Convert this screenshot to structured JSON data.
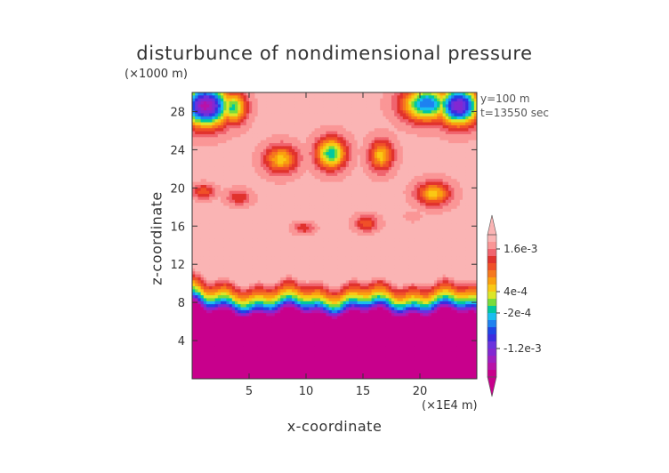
{
  "chart_data": {
    "type": "heatmap",
    "title": "disturbunce of nondimensional pressure",
    "xlabel": "x-coordinate",
    "ylabel": "z-coordinate",
    "x_unit": "(×1E4 m)",
    "y_unit": "(×1000 m)",
    "annotations": [
      "y=100 m",
      "t=13550 sec"
    ],
    "xlim": [
      0,
      25
    ],
    "ylim": [
      0,
      30
    ],
    "x_ticks": [
      5,
      10,
      15,
      20
    ],
    "y_ticks": [
      4,
      8,
      12,
      16,
      20,
      24,
      28
    ],
    "colorbar": {
      "levels": [
        -0.002,
        -0.0018,
        -0.0016,
        -0.0014,
        -0.0012,
        -0.001,
        -0.0008,
        -0.0006,
        -0.0004,
        -0.0002,
        0,
        0.0002,
        0.0004,
        0.0006,
        0.0008,
        0.001,
        0.0012,
        0.0014,
        0.0016,
        0.0018
      ],
      "tick_labels": [
        "1.6e-3",
        "4e-4",
        "-2e-4",
        "-1.2e-3"
      ],
      "tick_values": [
        0.0016,
        0.0004,
        -0.0002,
        -0.0012
      ],
      "colors": [
        "#c8008c",
        "#b812a8",
        "#a01ec0",
        "#8228d2",
        "#6a32de",
        "#3c2ce0",
        "#1e46e6",
        "#1e82f0",
        "#19bef0",
        "#00c8a0",
        "#78dc3c",
        "#dce628",
        "#fac814",
        "#faa00f",
        "#f5781e",
        "#f05028",
        "#e1322d",
        "#f0646e",
        "#fa9696",
        "#fab4b4"
      ]
    },
    "field": {
      "background_value": 0.00185,
      "lower_layer_value": -0.00195,
      "transition_profile": [
        {
          "z": 0,
          "value": -0.00195
        },
        {
          "z": 6.8,
          "value": -0.00195
        },
        {
          "z": 7.2,
          "value": -0.0014
        },
        {
          "z": 7.6,
          "value": -0.0006
        },
        {
          "z": 8.0,
          "value": -0.0001
        },
        {
          "z": 8.4,
          "value": 0.0003
        },
        {
          "z": 8.8,
          "value": 0.0007
        },
        {
          "z": 9.3,
          "value": 0.0011
        },
        {
          "z": 9.8,
          "value": 0.0015
        },
        {
          "z": 10.3,
          "value": 0.00185
        }
      ],
      "features": [
        {
          "x": 12.2,
          "z": 23.6,
          "rx": 1.6,
          "rz": 2.0,
          "min": -0.0002
        },
        {
          "x": 7.8,
          "z": 23.0,
          "rx": 1.8,
          "rz": 1.8,
          "min": 0.0005
        },
        {
          "x": 16.6,
          "z": 23.4,
          "rx": 1.3,
          "rz": 2.0,
          "min": 0.0005
        },
        {
          "x": 21.2,
          "z": 19.4,
          "rx": 1.8,
          "rz": 1.5,
          "min": 0.0005
        },
        {
          "x": 1.0,
          "z": 19.6,
          "rx": 1.2,
          "rz": 0.9,
          "min": 0.001
        },
        {
          "x": 4.1,
          "z": 19.0,
          "rx": 1.3,
          "rz": 1.0,
          "min": 0.0012
        },
        {
          "x": 9.8,
          "z": 15.8,
          "rx": 1.1,
          "rz": 0.7,
          "min": 0.0012
        },
        {
          "x": 15.3,
          "z": 16.3,
          "rx": 1.2,
          "rz": 1.0,
          "min": 0.001
        },
        {
          "x": 19.4,
          "z": 17.0,
          "rx": 0.8,
          "rz": 0.6,
          "min": 0.0016
        },
        {
          "x": 1.2,
          "z": 28.6,
          "rx": 2.5,
          "rz": 2.6,
          "min": -0.0017
        },
        {
          "x": 3.6,
          "z": 28.4,
          "rx": 1.4,
          "rz": 2.0,
          "min": -0.0001
        },
        {
          "x": 20.6,
          "z": 28.8,
          "rx": 2.6,
          "rz": 2.2,
          "min": -0.0006
        },
        {
          "x": 23.4,
          "z": 28.6,
          "rx": 2.2,
          "rz": 2.4,
          "min": -0.0014
        }
      ]
    }
  }
}
